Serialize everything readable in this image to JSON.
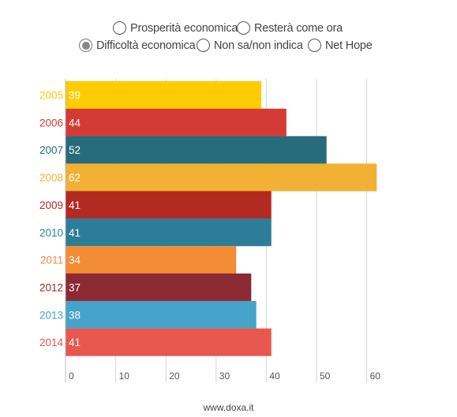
{
  "legend": {
    "options": [
      {
        "label": "Prosperità economica",
        "selected": false
      },
      {
        "label": "Resterà come ora",
        "selected": false
      },
      {
        "label": "Difficoltà economica",
        "selected": true
      },
      {
        "label": "Non sa/non indica",
        "selected": false
      },
      {
        "label": "Net Hope",
        "selected": false
      }
    ]
  },
  "chart_data": {
    "type": "bar",
    "orientation": "horizontal",
    "series_name": "Difficoltà economica",
    "categories": [
      "2005",
      "2006",
      "2007",
      "2008",
      "2009",
      "2010",
      "2011",
      "2012",
      "2013",
      "2014"
    ],
    "values": [
      39,
      44,
      52,
      62,
      41,
      41,
      34,
      37,
      38,
      41
    ],
    "colors": [
      "#FFCC00",
      "#D43A36",
      "#276C7A",
      "#F2B134",
      "#B32A22",
      "#2E7D98",
      "#F28C35",
      "#8C2A33",
      "#46A3C9",
      "#E8574E"
    ],
    "xlim": [
      0,
      60
    ],
    "xticks": [
      0,
      10,
      20,
      30,
      40,
      50,
      60
    ],
    "grid": true
  },
  "source": "www.doxa.it"
}
